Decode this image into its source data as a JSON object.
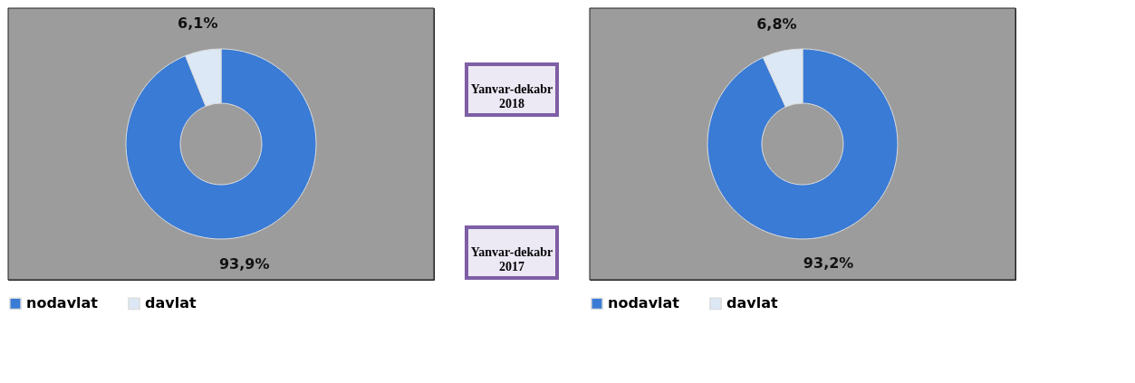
{
  "chart_data": [
    {
      "type": "donut",
      "categories": [
        "nodavlat",
        "davlat"
      ],
      "values": [
        93.9,
        6.1
      ],
      "colors": [
        "#3a7bd5",
        "#dce8f5"
      ],
      "value_labels": [
        "93,9%",
        "6,1%"
      ],
      "legend": "bottom",
      "annotations": [
        "Yanvar-dekabr 2018"
      ]
    },
    {
      "type": "donut",
      "categories": [
        "nodavlat",
        "davlat"
      ],
      "values": [
        93.2,
        6.8
      ],
      "colors": [
        "#3a7bd5",
        "#dce8f5"
      ],
      "value_labels": [
        "93,2%",
        "6,8%"
      ],
      "legend": "bottom",
      "annotations": [
        "Yanvar-dekabr 2017"
      ]
    }
  ]
}
